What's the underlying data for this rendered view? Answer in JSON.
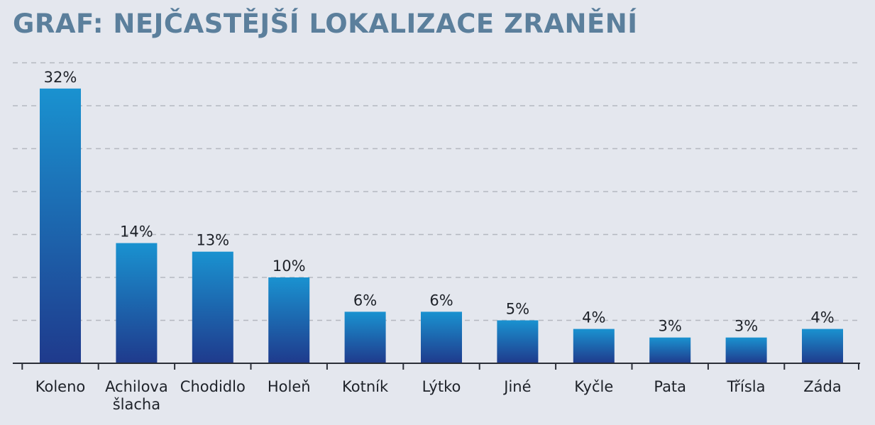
{
  "title": "GRAF: NEJČASTĚJŠÍ LOKALIZACE ZRANĚNÍ",
  "colors": {
    "bar_top": "#1a92d0",
    "bar_bottom": "#1f3a8c",
    "title": "#5b7f9c",
    "background": "#e4e7ee"
  },
  "chart_data": {
    "type": "bar",
    "title": "GRAF: NEJČASTĚJŠÍ LOKALIZACE ZRANĚNÍ",
    "categories": [
      "Koleno",
      "Achilova šlacha",
      "Chodidlo",
      "Holeň",
      "Kotník",
      "Lýtko",
      "Jiné",
      "Kyčle",
      "Pata",
      "Třísla",
      "Záda"
    ],
    "category_lines": [
      [
        "Koleno"
      ],
      [
        "Achilova",
        "šlacha"
      ],
      [
        "Chodidlo"
      ],
      [
        "Holeň"
      ],
      [
        "Kotník"
      ],
      [
        "Lýtko"
      ],
      [
        "Jiné"
      ],
      [
        "Kyčle"
      ],
      [
        "Pata"
      ],
      [
        "Třísla"
      ],
      [
        "Záda"
      ]
    ],
    "values": [
      32,
      14,
      13,
      10,
      6,
      6,
      5,
      4,
      3,
      3,
      4
    ],
    "value_labels": [
      "32%",
      "14%",
      "13%",
      "10%",
      "6%",
      "6%",
      "5%",
      "4%",
      "3%",
      "3%",
      "4%"
    ],
    "ylim": [
      0,
      35
    ],
    "grid": true,
    "xlabel": "",
    "ylabel": ""
  }
}
